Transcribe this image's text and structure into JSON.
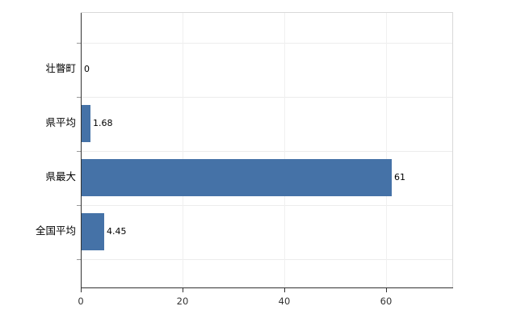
{
  "chart_data": {
    "type": "bar",
    "orientation": "horizontal",
    "title": "",
    "xlabel": "",
    "ylabel": "",
    "categories": [
      "壮瞥町",
      "県平均",
      "県最大",
      "全国平均"
    ],
    "values": [
      0,
      1.68,
      61,
      4.45
    ],
    "value_labels": [
      "0",
      "1.68",
      "61",
      "4.45"
    ],
    "xlim": [
      0,
      73
    ],
    "xticks": [
      0,
      20,
      40,
      60
    ],
    "xtick_labels": [
      "0",
      "20",
      "40",
      "60"
    ],
    "grid": true,
    "legend": false,
    "bar_color": "#4572a7",
    "axis_color": "#333333",
    "border_color": "#d9d9d9",
    "background_color": "#ffffff"
  }
}
